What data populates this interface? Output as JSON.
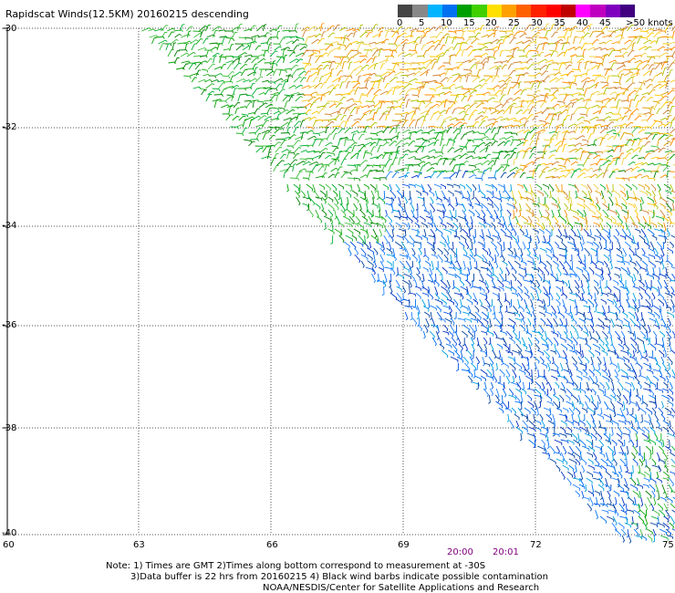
{
  "title": "Rapidscat Winds(12.5KM) 20160215 descending",
  "scale": {
    "ticks": [
      "0",
      "5",
      "10",
      "15",
      "20",
      "25",
      "30",
      "35",
      "40",
      "45",
      ">50 knots"
    ],
    "colors": [
      "#444444",
      "#888888",
      "#00b4ff",
      "#0070f0",
      "#00a000",
      "#40d000",
      "#ffe000",
      "#ffa000",
      "#ff6000",
      "#ff2000",
      "#ff0000",
      "#c00000",
      "#ff00ff",
      "#c000c0",
      "#8000c0",
      "#400080"
    ]
  },
  "lat_labels": [
    "-30",
    "-32",
    "-34",
    "-36",
    "-38",
    "-40"
  ],
  "lon_labels": [
    "60",
    "63",
    "66",
    "69",
    "72",
    "75"
  ],
  "time_labels": [
    "20:00",
    "20:01"
  ],
  "notes": {
    "line1": "Note: 1) Times are GMT 2)Times along bottom correspond to measurement at -30S",
    "line2": "3)Data buffer is 22 hrs from 20160215 4) Black wind barbs indicate possible contamination",
    "line3": "NOAA/NESDIS/Center for Satellite Applications and Research"
  },
  "swath_colors": {
    "north": [
      "#ffc800",
      "#f0d040",
      "#e0a000",
      "#ff8c00",
      "#d08030",
      "#b0c000"
    ],
    "central": [
      "#00a000",
      "#20b020",
      "#008000",
      "#40c040",
      "#00b030"
    ],
    "south": [
      "#0030c0",
      "#0050e0",
      "#0070f0",
      "#0040a0",
      "#2080ff",
      "#00a0e0"
    ]
  }
}
